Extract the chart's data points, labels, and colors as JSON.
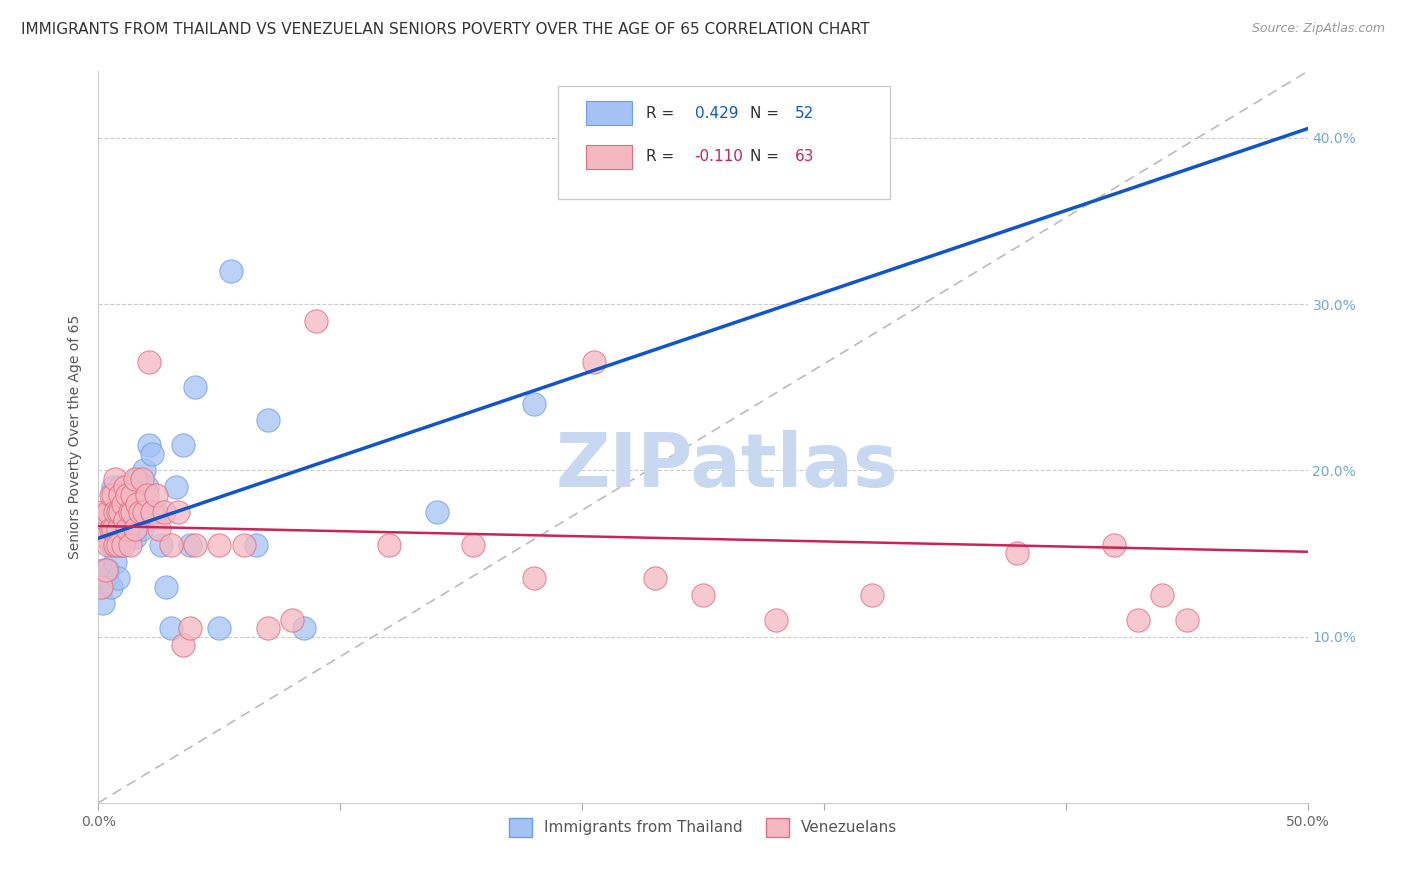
{
  "title": "IMMIGRANTS FROM THAILAND VS VENEZUELAN SENIORS POVERTY OVER THE AGE OF 65 CORRELATION CHART",
  "source": "Source: ZipAtlas.com",
  "ylabel": "Seniors Poverty Over the Age of 65",
  "xlim": [
    0.0,
    0.5
  ],
  "ylim": [
    0.0,
    0.44
  ],
  "xtick_vals": [
    0.0,
    0.1,
    0.2,
    0.3,
    0.4,
    0.5
  ],
  "xtick_labels": [
    "0.0%",
    "",
    "",
    "",
    "",
    "50.0%"
  ],
  "ytick_vals": [
    0.1,
    0.2,
    0.3,
    0.4
  ],
  "ytick_labels_right": [
    "10.0%",
    "20.0%",
    "30.0%",
    "40.0%"
  ],
  "legend_label_bottom1": "Immigrants from Thailand",
  "legend_label_bottom2": "Venezuelans",
  "R1": 0.429,
  "N1": 52,
  "R2": -0.11,
  "N2": 63,
  "blue_color": "#a4c2f4",
  "blue_edge_color": "#6d9eeb",
  "pink_color": "#f4b8c1",
  "pink_edge_color": "#e06c84",
  "blue_line_color": "#1155cc",
  "pink_line_color": "#cc2255",
  "diagonal_color": "#bbbbbb",
  "title_fontsize": 11,
  "source_fontsize": 9,
  "axis_label_fontsize": 10,
  "tick_fontsize": 10,
  "legend_fontsize": 11,
  "watermark_color": "#c8d8f0",
  "blue_scatter_x": [
    0.001,
    0.002,
    0.002,
    0.003,
    0.003,
    0.004,
    0.004,
    0.005,
    0.005,
    0.005,
    0.006,
    0.006,
    0.007,
    0.007,
    0.008,
    0.008,
    0.008,
    0.009,
    0.009,
    0.009,
    0.01,
    0.01,
    0.011,
    0.011,
    0.012,
    0.012,
    0.013,
    0.013,
    0.014,
    0.015,
    0.015,
    0.016,
    0.018,
    0.019,
    0.02,
    0.021,
    0.022,
    0.024,
    0.026,
    0.028,
    0.03,
    0.032,
    0.035,
    0.038,
    0.04,
    0.05,
    0.055,
    0.065,
    0.07,
    0.085,
    0.14,
    0.18
  ],
  "blue_scatter_y": [
    0.13,
    0.14,
    0.12,
    0.135,
    0.16,
    0.14,
    0.175,
    0.155,
    0.13,
    0.175,
    0.155,
    0.19,
    0.165,
    0.145,
    0.18,
    0.165,
    0.135,
    0.175,
    0.155,
    0.19,
    0.165,
    0.155,
    0.175,
    0.16,
    0.175,
    0.185,
    0.175,
    0.18,
    0.185,
    0.19,
    0.16,
    0.195,
    0.165,
    0.2,
    0.19,
    0.215,
    0.21,
    0.175,
    0.155,
    0.13,
    0.105,
    0.19,
    0.215,
    0.155,
    0.25,
    0.105,
    0.32,
    0.155,
    0.23,
    0.105,
    0.175,
    0.24
  ],
  "pink_scatter_x": [
    0.001,
    0.002,
    0.003,
    0.003,
    0.004,
    0.004,
    0.005,
    0.005,
    0.006,
    0.006,
    0.007,
    0.007,
    0.007,
    0.008,
    0.008,
    0.008,
    0.009,
    0.009,
    0.01,
    0.01,
    0.011,
    0.011,
    0.012,
    0.012,
    0.013,
    0.013,
    0.014,
    0.014,
    0.015,
    0.015,
    0.016,
    0.017,
    0.018,
    0.019,
    0.02,
    0.021,
    0.022,
    0.024,
    0.025,
    0.027,
    0.03,
    0.033,
    0.035,
    0.038,
    0.04,
    0.05,
    0.06,
    0.07,
    0.08,
    0.09,
    0.12,
    0.155,
    0.18,
    0.205,
    0.23,
    0.25,
    0.28,
    0.32,
    0.38,
    0.42,
    0.43,
    0.44,
    0.45
  ],
  "pink_scatter_y": [
    0.13,
    0.175,
    0.16,
    0.14,
    0.155,
    0.175,
    0.165,
    0.185,
    0.165,
    0.185,
    0.155,
    0.175,
    0.195,
    0.165,
    0.175,
    0.155,
    0.175,
    0.185,
    0.155,
    0.18,
    0.17,
    0.19,
    0.165,
    0.185,
    0.175,
    0.155,
    0.175,
    0.185,
    0.165,
    0.195,
    0.18,
    0.175,
    0.195,
    0.175,
    0.185,
    0.265,
    0.175,
    0.185,
    0.165,
    0.175,
    0.155,
    0.175,
    0.095,
    0.105,
    0.155,
    0.155,
    0.155,
    0.105,
    0.11,
    0.29,
    0.155,
    0.155,
    0.135,
    0.265,
    0.135,
    0.125,
    0.11,
    0.125,
    0.15,
    0.155,
    0.11,
    0.125,
    0.11
  ]
}
